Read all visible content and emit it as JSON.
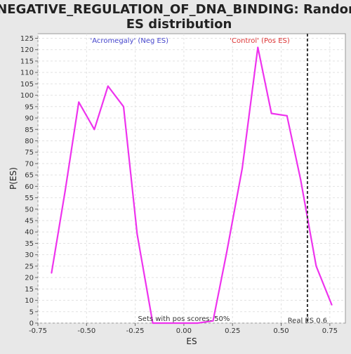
{
  "chart_data": {
    "type": "line",
    "title": "NEGATIVE_REGULATION_OF_DNA_BINDING: Random ES distribution",
    "title_lines": [
      "NEGATIVE_REGULATION_OF_DNA_BINDING: Random",
      "ES distribution"
    ],
    "xlabel": "ES",
    "ylabel": "P(ES)",
    "xlim": [
      -0.75,
      0.83
    ],
    "ylim": [
      0,
      127
    ],
    "x_ticks": [
      -0.75,
      -0.5,
      -0.25,
      0.0,
      0.25,
      0.5,
      0.75
    ],
    "x_tick_labels": [
      "-0.75",
      "-0.50",
      "-0.25",
      "0.00",
      "0.25",
      "0.50",
      "0.75"
    ],
    "y_ticks": [
      0,
      5,
      10,
      15,
      20,
      25,
      30,
      35,
      40,
      45,
      50,
      55,
      60,
      65,
      70,
      75,
      80,
      85,
      90,
      95,
      100,
      105,
      110,
      115,
      120,
      125
    ],
    "grid": true,
    "series": [
      {
        "color": "#ee33ee",
        "x": [
          -0.68,
          -0.61,
          -0.54,
          -0.46,
          -0.39,
          -0.31,
          -0.24,
          -0.16,
          -0.09,
          -0.01,
          0.07,
          0.15,
          0.22,
          0.3,
          0.38,
          0.45,
          0.53,
          0.6,
          0.68,
          0.76
        ],
        "y": [
          22,
          58,
          97,
          85,
          104,
          95,
          39,
          0,
          0,
          0,
          0,
          1,
          31,
          68,
          121,
          92,
          91,
          63,
          25,
          8
        ]
      }
    ],
    "neg_label": {
      "text": "'Acromegaly' (Neg ES)",
      "color": "#4444cc"
    },
    "pos_label": {
      "text": "'Control' (Pos ES)",
      "color": "#dd3333"
    },
    "real_es": {
      "value": 0.635,
      "label": "Real ES 0.6",
      "color": "#333333"
    },
    "footnote": "Sets with pos scores: 50%"
  }
}
